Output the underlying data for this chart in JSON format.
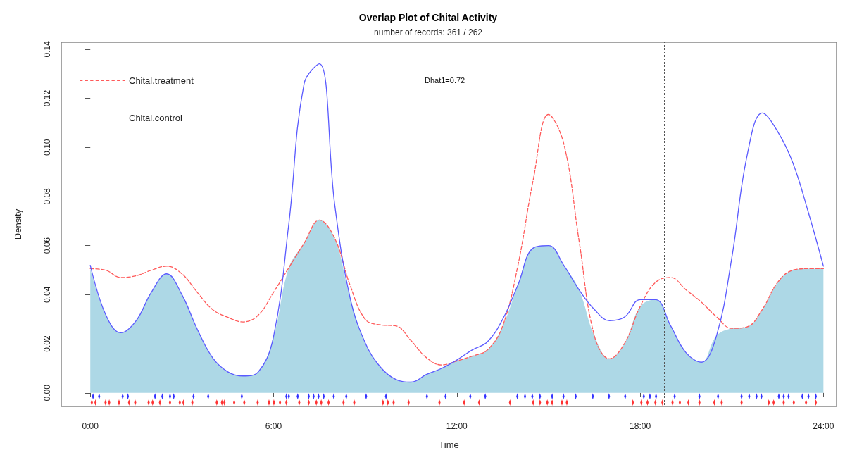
{
  "chart_data": {
    "type": "line",
    "title": "Overlap Plot of Chital Activity",
    "subtitle": "number of records: 361 / 262",
    "xlabel": "Time",
    "ylabel": "Density",
    "annotations": [
      "Dhat1=0.72"
    ],
    "x": [
      0,
      0.5,
      1,
      1.5,
      2,
      2.5,
      3,
      3.5,
      4,
      4.5,
      5,
      5.5,
      6,
      6.5,
      7,
      7.5,
      8,
      8.5,
      9,
      9.5,
      10,
      10.5,
      11,
      11.5,
      12,
      12.5,
      13,
      13.5,
      14,
      14.5,
      15,
      15.5,
      16,
      16.5,
      17,
      17.5,
      18,
      18.5,
      19,
      19.5,
      20,
      20.5,
      21,
      21.5,
      22,
      22.5,
      23,
      23.5,
      24
    ],
    "series": [
      {
        "type": "area",
        "color": "#add8e6",
        "values": [
          0.0506,
          0.032,
          0.0245,
          0.0294,
          0.041,
          0.0485,
          0.04,
          0.026,
          0.0144,
          0.0086,
          0.0069,
          0.0086,
          0.023,
          0.051,
          0.061,
          0.0704,
          0.063,
          0.039,
          0.0204,
          0.0105,
          0.0055,
          0.0044,
          0.0075,
          0.01,
          0.013,
          0.015,
          0.0175,
          0.0273,
          0.044,
          0.059,
          0.06,
          0.052,
          0.042,
          0.0233,
          0.0139,
          0.0204,
          0.0352,
          0.038,
          0.0273,
          0.0164,
          0.0125,
          0.0233,
          0.0263,
          0.0269,
          0.034,
          0.045,
          0.05,
          0.0506,
          0.0506
        ]
      },
      {
        "name": "Chital.treatment",
        "color": "#ff5a5a",
        "line_style": "dashed",
        "values": [
          0.0506,
          0.05,
          0.047,
          0.0477,
          0.05,
          0.0516,
          0.0485,
          0.041,
          0.034,
          0.0308,
          0.0289,
          0.0317,
          0.041,
          0.051,
          0.061,
          0.0704,
          0.063,
          0.044,
          0.03,
          0.0277,
          0.0273,
          0.0213,
          0.0144,
          0.0114,
          0.013,
          0.015,
          0.0175,
          0.0273,
          0.052,
          0.0868,
          0.1134,
          0.1015,
          0.062,
          0.0233,
          0.0139,
          0.0204,
          0.0352,
          0.045,
          0.047,
          0.042,
          0.037,
          0.031,
          0.0263,
          0.0269,
          0.034,
          0.045,
          0.05,
          0.0506,
          0.0506
        ]
      },
      {
        "name": "Chital.control",
        "color": "#5a5aff",
        "line_style": "solid",
        "values": [
          0.052,
          0.032,
          0.0245,
          0.0294,
          0.041,
          0.0485,
          0.04,
          0.026,
          0.0144,
          0.0086,
          0.0069,
          0.0086,
          0.023,
          0.069,
          0.126,
          0.134,
          0.0768,
          0.039,
          0.0204,
          0.0105,
          0.0055,
          0.0044,
          0.0075,
          0.01,
          0.0134,
          0.0175,
          0.0208,
          0.03,
          0.044,
          0.059,
          0.06,
          0.052,
          0.042,
          0.034,
          0.0294,
          0.031,
          0.038,
          0.038,
          0.0273,
          0.0164,
          0.0125,
          0.0233,
          0.055,
          0.0966,
          0.114,
          0.1065,
          0.0937,
          0.0738,
          0.0516
        ]
      },
      {
        "type": "scatter",
        "color": "#0000ff",
        "x": [
          0.09,
          0.29,
          1.06,
          1.23,
          2.12,
          2.36,
          2.61,
          2.73,
          3.38,
          3.86,
          4.96,
          6.42,
          6.5,
          6.79,
          7.15,
          7.31,
          7.47,
          7.64,
          7.97,
          8.38,
          9.03,
          9.68,
          11.02,
          11.63,
          12.44,
          12.93,
          13.98,
          14.23,
          14.47,
          14.72,
          15.12,
          15.49,
          15.89,
          16.45,
          16.98,
          17.51,
          18.12,
          18.32,
          18.52,
          19.13,
          19.94,
          20.55,
          21.32,
          21.57,
          21.81,
          21.97,
          22.54,
          22.7,
          22.86,
          23.31,
          23.51,
          23.75
        ],
        "values": [
          -0.0014,
          -0.0014,
          -0.0014,
          -0.0014,
          -0.0014,
          -0.0014,
          -0.0014,
          -0.0014,
          -0.0014,
          -0.0014,
          -0.0014,
          -0.0014,
          -0.0014,
          -0.0014,
          -0.0014,
          -0.0014,
          -0.0014,
          -0.0014,
          -0.0014,
          -0.0014,
          -0.0014,
          -0.0014,
          -0.0014,
          -0.0014,
          -0.0014,
          -0.0014,
          -0.0014,
          -0.0014,
          -0.0014,
          -0.0014,
          -0.0014,
          -0.0014,
          -0.0014,
          -0.0014,
          -0.0014,
          -0.0014,
          -0.0014,
          -0.0014,
          -0.0014,
          -0.0014,
          -0.0014,
          -0.0014,
          -0.0014,
          -0.0014,
          -0.0014,
          -0.0014,
          -0.0014,
          -0.0014,
          -0.0014,
          -0.0014,
          -0.0014,
          -0.0014
        ]
      },
      {
        "type": "scatter",
        "color": "#ff0000",
        "x": [
          0.05,
          0.17,
          0.5,
          0.62,
          0.94,
          1.27,
          1.47,
          1.91,
          2.04,
          2.28,
          2.61,
          2.93,
          3.05,
          3.34,
          4.14,
          4.31,
          4.39,
          4.71,
          5.04,
          5.48,
          5.85,
          6.01,
          6.21,
          6.42,
          6.84,
          7.15,
          7.4,
          7.56,
          7.8,
          8.29,
          8.64,
          9.58,
          9.74,
          9.93,
          10.42,
          11.43,
          12.24,
          12.73,
          13.74,
          14.5,
          14.72,
          14.96,
          15.12,
          15.44,
          15.6,
          17.76,
          18.04,
          18.24,
          18.5,
          18.73,
          19.06,
          19.3,
          19.58,
          19.94,
          20.43,
          20.67,
          21.32,
          22.21,
          22.37,
          22.7,
          23.03,
          23.43,
          23.75
        ],
        "values": [
          -0.0039,
          -0.0039,
          -0.0039,
          -0.0039,
          -0.0039,
          -0.0039,
          -0.0039,
          -0.0039,
          -0.0039,
          -0.0039,
          -0.0039,
          -0.0039,
          -0.0039,
          -0.0039,
          -0.0039,
          -0.0039,
          -0.0039,
          -0.0039,
          -0.0039,
          -0.0039,
          -0.0039,
          -0.0039,
          -0.0039,
          -0.0039,
          -0.0039,
          -0.0039,
          -0.0039,
          -0.0039,
          -0.0039,
          -0.0039,
          -0.0039,
          -0.0039,
          -0.0039,
          -0.0039,
          -0.0039,
          -0.0039,
          -0.0039,
          -0.0039,
          -0.0039,
          -0.0039,
          -0.0039,
          -0.0039,
          -0.0039,
          -0.0039,
          -0.0039,
          -0.0039,
          -0.0039,
          -0.0039,
          -0.0039,
          -0.0039,
          -0.0039,
          -0.0039,
          -0.0039,
          -0.0039,
          -0.0039,
          -0.0039,
          -0.0039,
          -0.0039,
          -0.0039,
          -0.0039,
          -0.0039,
          -0.0039,
          -0.0039
        ]
      }
    ],
    "ref_lines": [
      {
        "axis": "x",
        "value": 5.49,
        "color": "#555555",
        "line_style": "dotted"
      },
      {
        "axis": "x",
        "value": 18.78,
        "color": "#555555",
        "line_style": "dotted"
      }
    ],
    "xlim": [
      -0.95,
      24.43
    ],
    "ylim": [
      -0.0055,
      0.1428
    ],
    "xticks": [
      {
        "value": 0,
        "label": "0:00"
      },
      {
        "value": 6,
        "label": "6:00"
      },
      {
        "value": 12,
        "label": "12:00"
      },
      {
        "value": 18,
        "label": "18:00"
      },
      {
        "value": 24,
        "label": "24:00"
      }
    ],
    "yticks": [
      {
        "value": 0,
        "label": "0.00"
      },
      {
        "value": 0.02,
        "label": "0.02"
      },
      {
        "value": 0.04,
        "label": "0.04"
      },
      {
        "value": 0.06,
        "label": "0.06"
      },
      {
        "value": 0.08,
        "label": "0.08"
      },
      {
        "value": 0.1,
        "label": "0.10"
      },
      {
        "value": 0.12,
        "label": "0.12"
      },
      {
        "value": 0.14,
        "label": "0.14"
      }
    ],
    "grid": false,
    "legend": "top left"
  }
}
